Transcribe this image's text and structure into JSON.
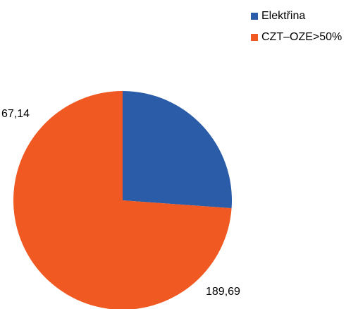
{
  "chart_data": {
    "type": "pie",
    "categories": [
      "Elektřina",
      "CZT–OZE>50%"
    ],
    "values": [
      67.14,
      189.69
    ],
    "data_labels": [
      "67,14",
      "189,69"
    ],
    "colors": [
      "#2a5ca8",
      "#f05a22"
    ],
    "legend_position": "top-right",
    "start_angle": "12 o'clock, clockwise"
  }
}
